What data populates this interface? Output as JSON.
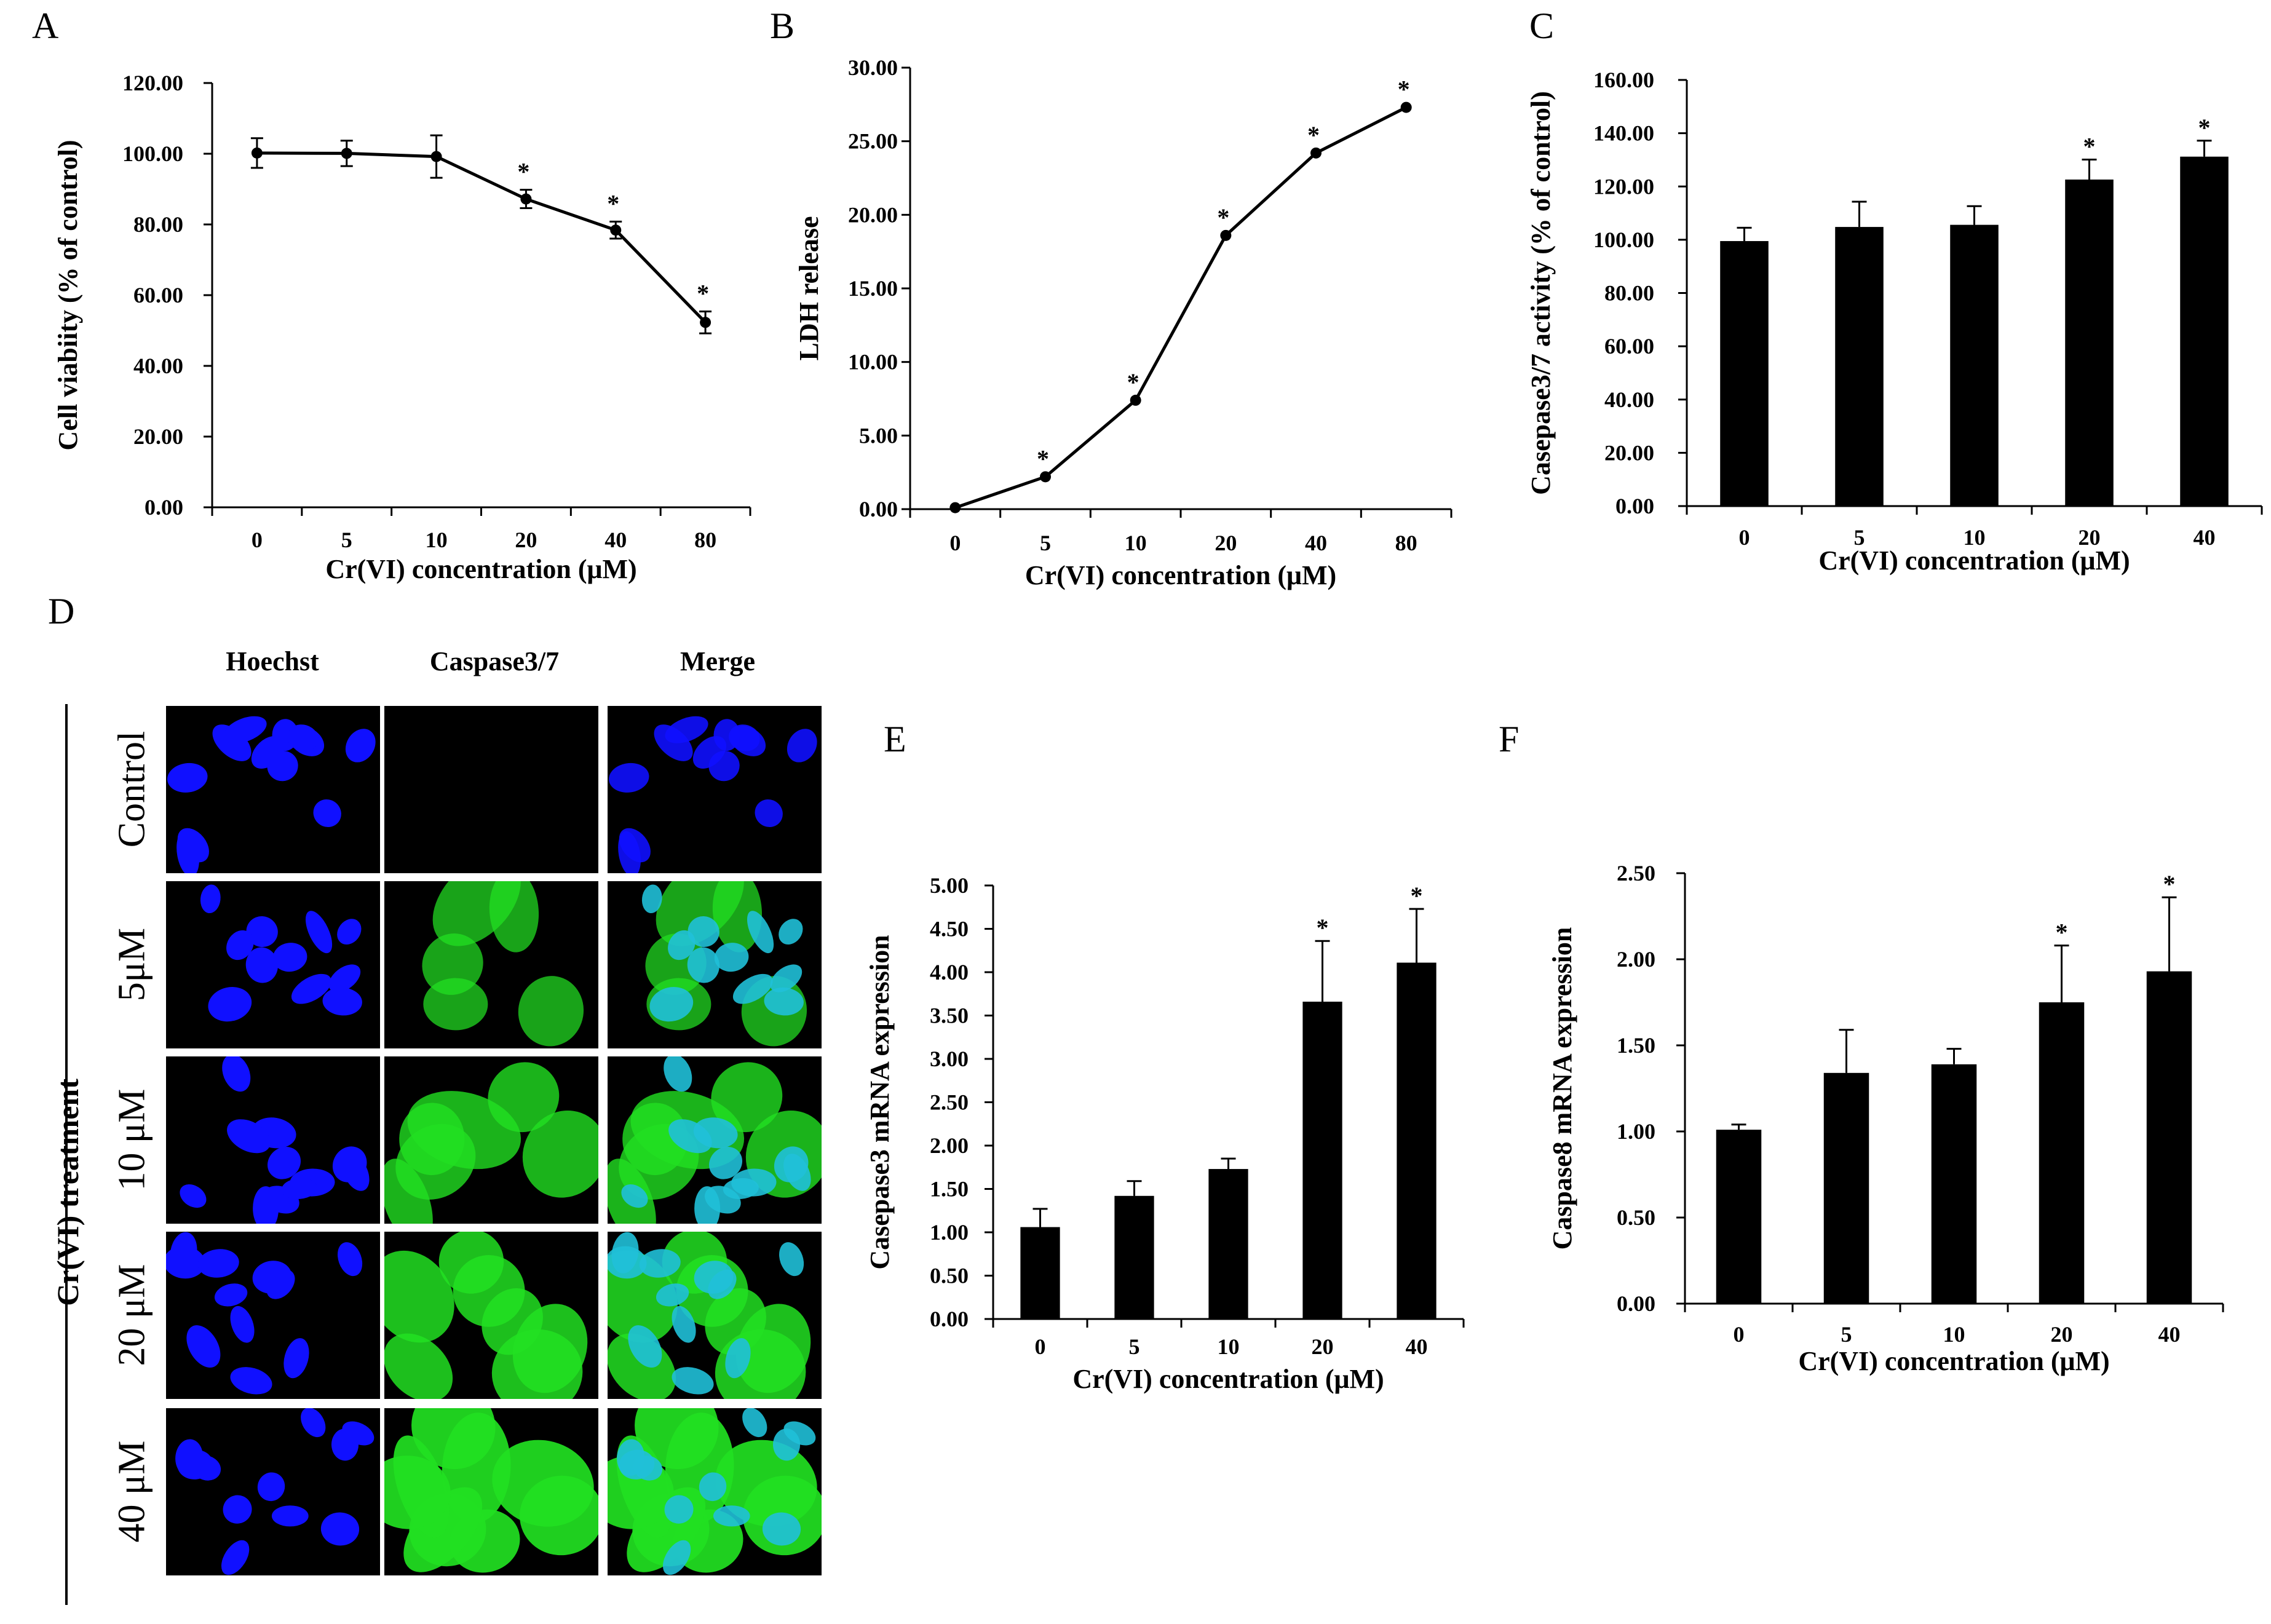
{
  "panels": {
    "A": "A",
    "B": "B",
    "C": "C",
    "D": "D",
    "E": "E",
    "F": "F"
  },
  "chart_data": [
    {
      "id": "A",
      "type": "line",
      "categories": [
        "0",
        "5",
        "10",
        "20",
        "40",
        "80"
      ],
      "values": [
        100.2,
        100.1,
        99.2,
        87.2,
        78.4,
        52.3
      ],
      "errors": [
        4.2,
        3.6,
        6.0,
        2.6,
        2.4,
        3.1
      ],
      "significant": [
        false,
        false,
        false,
        true,
        true,
        true
      ],
      "star_label": "*",
      "ylim": [
        0,
        120
      ],
      "yticks": [
        "0.00",
        "20.00",
        "40.00",
        "60.00",
        "80.00",
        "100.00",
        "120.00"
      ],
      "xlabel": "Cr(VI) concentration (μM)",
      "ylabel": "Cell viabiity (% of control)"
    },
    {
      "id": "B",
      "type": "line",
      "categories": [
        "0",
        "5",
        "10",
        "20",
        "40",
        "80"
      ],
      "values": [
        0.1,
        2.2,
        7.4,
        18.6,
        24.2,
        27.3
      ],
      "errors": [
        0,
        0,
        0,
        0,
        0,
        0
      ],
      "significant": [
        false,
        true,
        true,
        true,
        true,
        true
      ],
      "star_label": "*",
      "ylim": [
        0,
        30
      ],
      "yticks": [
        "0.00",
        "5.00",
        "10.00",
        "15.00",
        "20.00",
        "25.00",
        "30.00"
      ],
      "xlabel": "Cr(VI) concentration (μM)",
      "ylabel": "LDH release"
    },
    {
      "id": "C",
      "type": "bar",
      "categories": [
        "0",
        "5",
        "10",
        "20",
        "40"
      ],
      "values": [
        99.5,
        104.8,
        105.6,
        122.6,
        131.2
      ],
      "errors": [
        5.0,
        9.5,
        7.0,
        7.5,
        6.0
      ],
      "significant": [
        false,
        false,
        false,
        true,
        true
      ],
      "star_label": "*",
      "ylim": [
        0,
        160
      ],
      "yticks": [
        "0.00",
        "20.00",
        "40.00",
        "60.00",
        "80.00",
        "100.00",
        "120.00",
        "140.00",
        "160.00"
      ],
      "xlabel": "Cr(VI) concentration (μM)",
      "ylabel": "Casepase3/7 activity (% of control)"
    },
    {
      "id": "E",
      "type": "bar",
      "categories": [
        "0",
        "5",
        "10",
        "20",
        "40"
      ],
      "values": [
        1.06,
        1.42,
        1.73,
        3.66,
        4.11
      ],
      "errors": [
        0.21,
        0.17,
        0.12,
        0.7,
        0.62
      ],
      "significant": [
        false,
        false,
        false,
        true,
        true
      ],
      "star_label": "*",
      "ylim": [
        0,
        5
      ],
      "yticks": [
        "0.00",
        "0.50",
        "1.00",
        "1.50",
        "2.00",
        "2.50",
        "3.00",
        "3.50",
        "4.00",
        "4.50",
        "5.00"
      ],
      "xlabel": "Cr(VI) concentration (μM)",
      "ylabel": "Casepase3 mRNA expression"
    },
    {
      "id": "F",
      "type": "bar",
      "categories": [
        "0",
        "5",
        "10",
        "20",
        "40"
      ],
      "values": [
        1.01,
        1.34,
        1.39,
        1.75,
        1.93
      ],
      "errors": [
        0.03,
        0.25,
        0.09,
        0.33,
        0.43
      ],
      "significant": [
        false,
        false,
        false,
        true,
        true
      ],
      "star_label": "*",
      "ylim": [
        0,
        2.5
      ],
      "yticks": [
        "0.00",
        "0.50",
        "1.00",
        "1.50",
        "2.00",
        "2.50"
      ],
      "xlabel": "Cr(VI) concentration (μM)",
      "ylabel": "Caspase8 mRNA expression"
    }
  ],
  "microscopy": {
    "columns": [
      "Hoechst",
      "Caspase3/7",
      "Merge"
    ],
    "rows": [
      "Control",
      "5μM",
      "10 μM",
      "20 μM",
      "40 μM"
    ],
    "green_intensity": [
      0.0,
      0.55,
      0.7,
      0.8,
      0.95
    ],
    "treatment_label": "Cr(VI) treatment",
    "colors": {
      "nucleus": "#1010ff",
      "caspase": "#22e022",
      "background": "#000000",
      "merge_overlap": "#20c0d8"
    }
  }
}
